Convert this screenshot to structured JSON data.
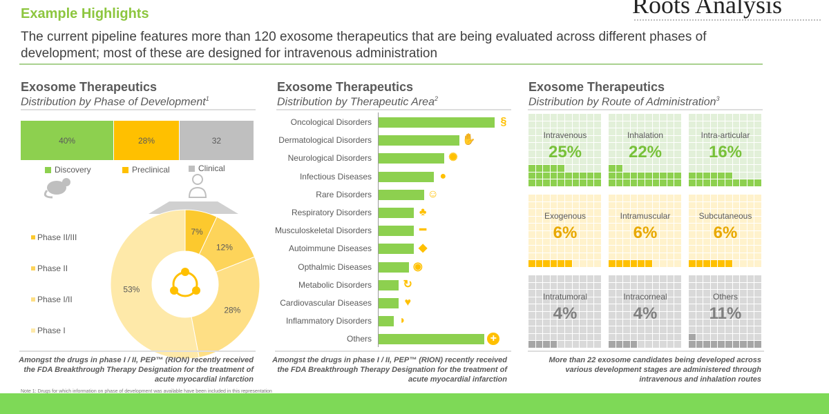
{
  "header": {
    "title": "Example Highlights",
    "logo": "Roots Analysis",
    "subtitle": "The current pipeline features more than 120 exosome therapeutics that are being evaluated across different phases of development; most of these are designed for intravenous administration"
  },
  "colors": {
    "green": "#8dd04f",
    "yellow": "#ffc000",
    "grey": "#bfbfbf",
    "footer": "#7ed957"
  },
  "chart_data": [
    {
      "type": "bar",
      "orientation": "stacked-horizontal",
      "title": "Exosome Therapeutics",
      "subtitle": "Distribution by Phase of Development",
      "footnote_mark": "1",
      "categories": [
        "Discovery",
        "Preclinical",
        "Clinical"
      ],
      "values": [
        40,
        28,
        32
      ],
      "labels": [
        "40%",
        "28%",
        "32"
      ]
    },
    {
      "type": "pie",
      "variant": "donut",
      "categories": [
        "Phase II/III",
        "Phase II",
        "Phase I/II",
        "Phase I"
      ],
      "slices": [
        {
          "label": "7%",
          "value": 7
        },
        {
          "label": "12%",
          "value": 12
        },
        {
          "label": "28%",
          "value": 28
        },
        {
          "label": "53%",
          "value": 53
        }
      ],
      "colors": [
        "#fcc92e",
        "#fdd45a",
        "#fedf85",
        "#fee9a9"
      ]
    },
    {
      "type": "bar",
      "orientation": "horizontal",
      "title": "Exosome Therapeutics",
      "subtitle": "Distribution by Therapeutic Area",
      "footnote_mark": "2",
      "categories": [
        "Oncological Disorders",
        "Dermatological Disorders",
        "Neurological Disorders",
        "Infectious Diseases",
        "Rare Disorders",
        "Respiratory Disorders",
        "Musculoskeletal Disorders",
        "Autoimmune Diseases",
        "Opthalmic Diseases",
        "Metabolic Disorders",
        "Cardiovascular Diseases",
        "Inflammatory Disorders",
        "Others"
      ],
      "values": [
        23,
        16,
        13,
        11,
        9,
        7,
        7,
        7,
        6,
        4,
        4,
        3,
        21
      ],
      "icons": [
        "dna-icon",
        "skin-icon",
        "brain-icon",
        "head-icon",
        "body-icon",
        "lungs-icon",
        "bone-icon",
        "shield-icon",
        "eye-icon",
        "cycle-icon",
        "heart-icon",
        "stomach-icon",
        "plus-icon"
      ]
    },
    {
      "type": "waffle",
      "title": "Exosome Therapeutics",
      "subtitle": "Distribution by Route of Administration",
      "footnote_mark": "3",
      "items": [
        {
          "label": "Intravenous",
          "value": 25,
          "text": "25%",
          "group": "green"
        },
        {
          "label": "Inhalation",
          "value": 22,
          "text": "22%",
          "group": "green"
        },
        {
          "label": "Intra-articular",
          "value": 16,
          "text": "16%",
          "group": "green"
        },
        {
          "label": "Exogenous",
          "value": 6,
          "text": "6%",
          "group": "yellow"
        },
        {
          "label": "Intramuscular",
          "value": 6,
          "text": "6%",
          "group": "yellow"
        },
        {
          "label": "Subcutaneous",
          "value": 6,
          "text": "6%",
          "group": "yellow"
        },
        {
          "label": "Intratumoral",
          "value": 4,
          "text": "4%",
          "group": "grey"
        },
        {
          "label": "Intracorneal",
          "value": 4,
          "text": "4%",
          "group": "grey"
        },
        {
          "label": "Others",
          "value": 11,
          "text": "11%",
          "group": "grey"
        }
      ]
    }
  ],
  "notes": [
    "Amongst the drugs in phase I / II, PEP™ (RION) recently received the FDA Breakthrough Therapy Designation for the treatment of acute myocardial infarction",
    "Amongst the drugs in phase I / II, PEP™ (RION) recently received the FDA Breakthrough Therapy Designation for the treatment of acute myocardial infarction",
    "More than 22 exosome candidates being developed across various development stages are administered through intravenous and inhalation routes"
  ],
  "footnote": "Note 1: Drugs for which information on phase of development was available have been included in this representation"
}
